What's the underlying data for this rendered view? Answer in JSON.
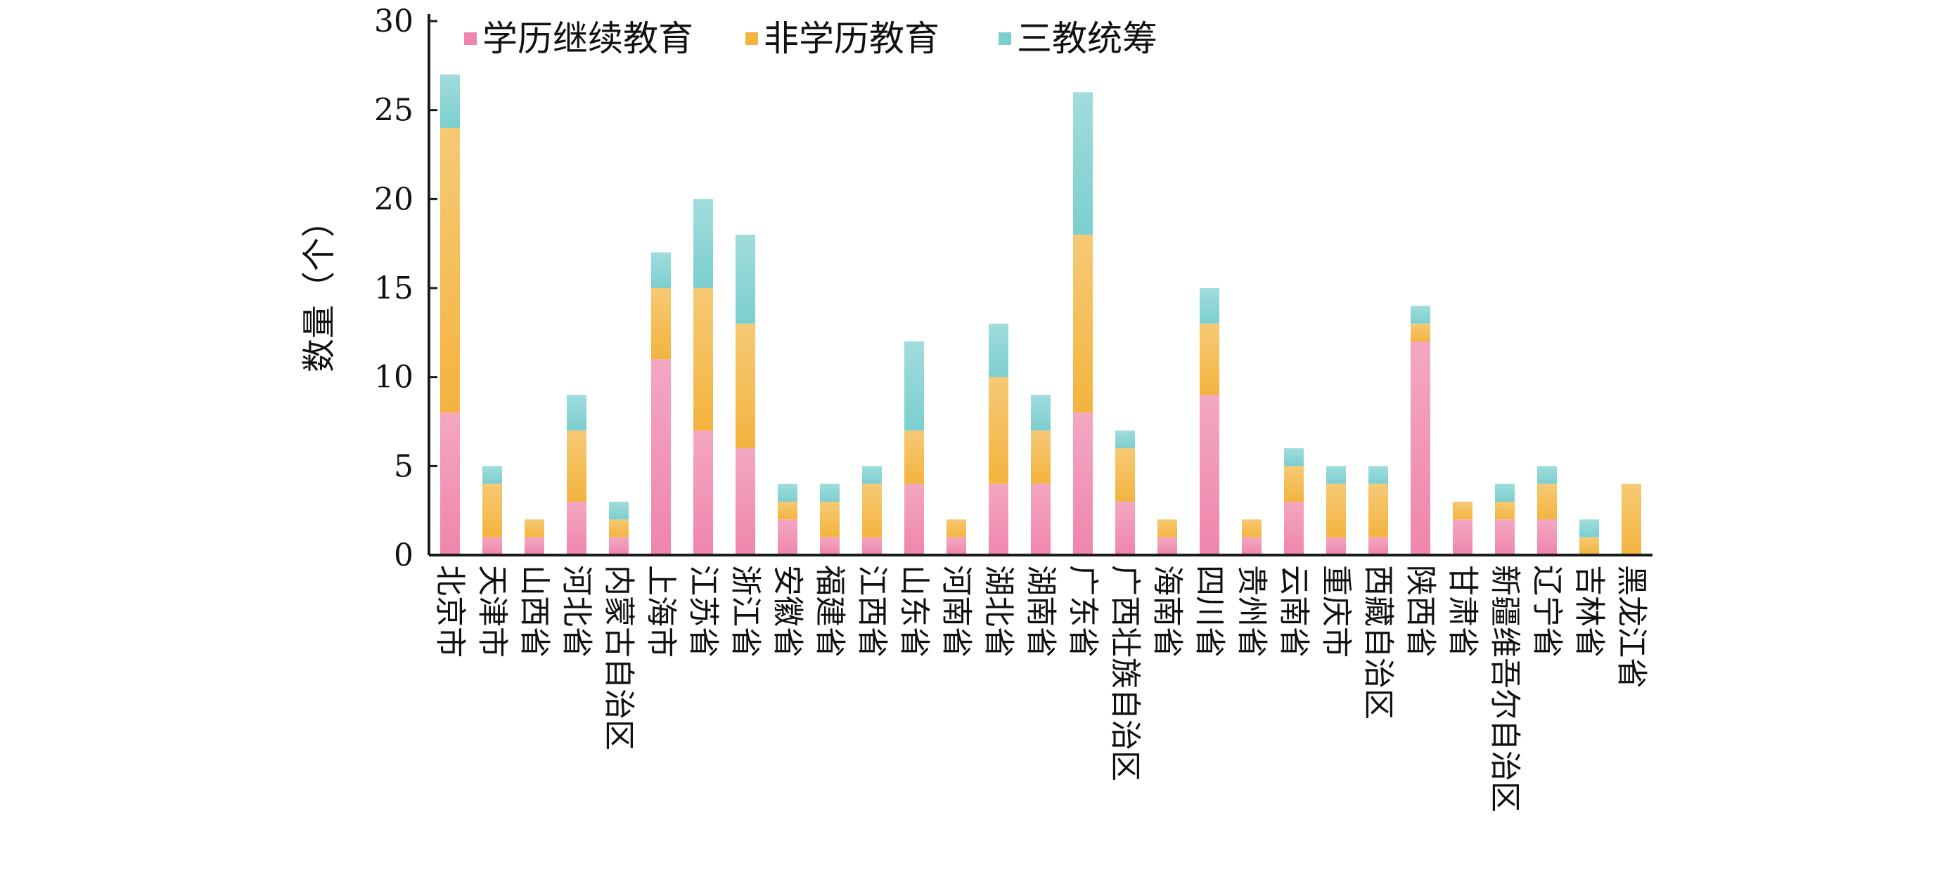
{
  "colors": {
    "academic": "#ef85ac",
    "non_academic": "#f3b43f",
    "three_edu": "#7ccfcf",
    "axis": "#1a1a1a",
    "text": "#111111"
  },
  "chart_data": {
    "type": "bar",
    "stacked": true,
    "title": "",
    "xlabel": "",
    "ylabel": "数量（个）",
    "ylim": [
      0,
      30
    ],
    "yticks": [
      0,
      5,
      10,
      15,
      20,
      25,
      30
    ],
    "grid": false,
    "legend_position": "top",
    "categories": [
      "北京市",
      "天津市",
      "山西省",
      "河北省",
      "内蒙古自治区",
      "上海市",
      "江苏省",
      "浙江省",
      "安徽省",
      "福建省",
      "江西省",
      "山东省",
      "河南省",
      "湖北省",
      "湖南省",
      "广东省",
      "广西壮族自治区",
      "海南省",
      "四川省",
      "贵州省",
      "云南省",
      "重庆市",
      "西藏自治区",
      "陕西省",
      "甘肃省",
      "新疆维吾尔自治区",
      "辽宁省",
      "吉林省",
      "黑龙江省"
    ],
    "series": [
      {
        "name": "学历继续教育",
        "color_key": "academic",
        "values": [
          8,
          1,
          1,
          3,
          1,
          11,
          7,
          6,
          2,
          1,
          1,
          4,
          1,
          4,
          4,
          8,
          3,
          1,
          9,
          1,
          3,
          1,
          1,
          12,
          2,
          2,
          2,
          0,
          0
        ]
      },
      {
        "name": "非学历教育",
        "color_key": "non_academic",
        "values": [
          16,
          3,
          1,
          4,
          1,
          4,
          8,
          7,
          1,
          2,
          3,
          3,
          1,
          6,
          3,
          10,
          3,
          1,
          4,
          1,
          2,
          3,
          3,
          1,
          1,
          1,
          2,
          1,
          4
        ]
      },
      {
        "name": "三教统筹",
        "color_key": "three_edu",
        "values": [
          3,
          1,
          0,
          2,
          1,
          2,
          5,
          5,
          1,
          1,
          1,
          5,
          0,
          3,
          2,
          8,
          1,
          0,
          2,
          0,
          1,
          1,
          1,
          1,
          0,
          1,
          1,
          1,
          0
        ]
      }
    ]
  }
}
